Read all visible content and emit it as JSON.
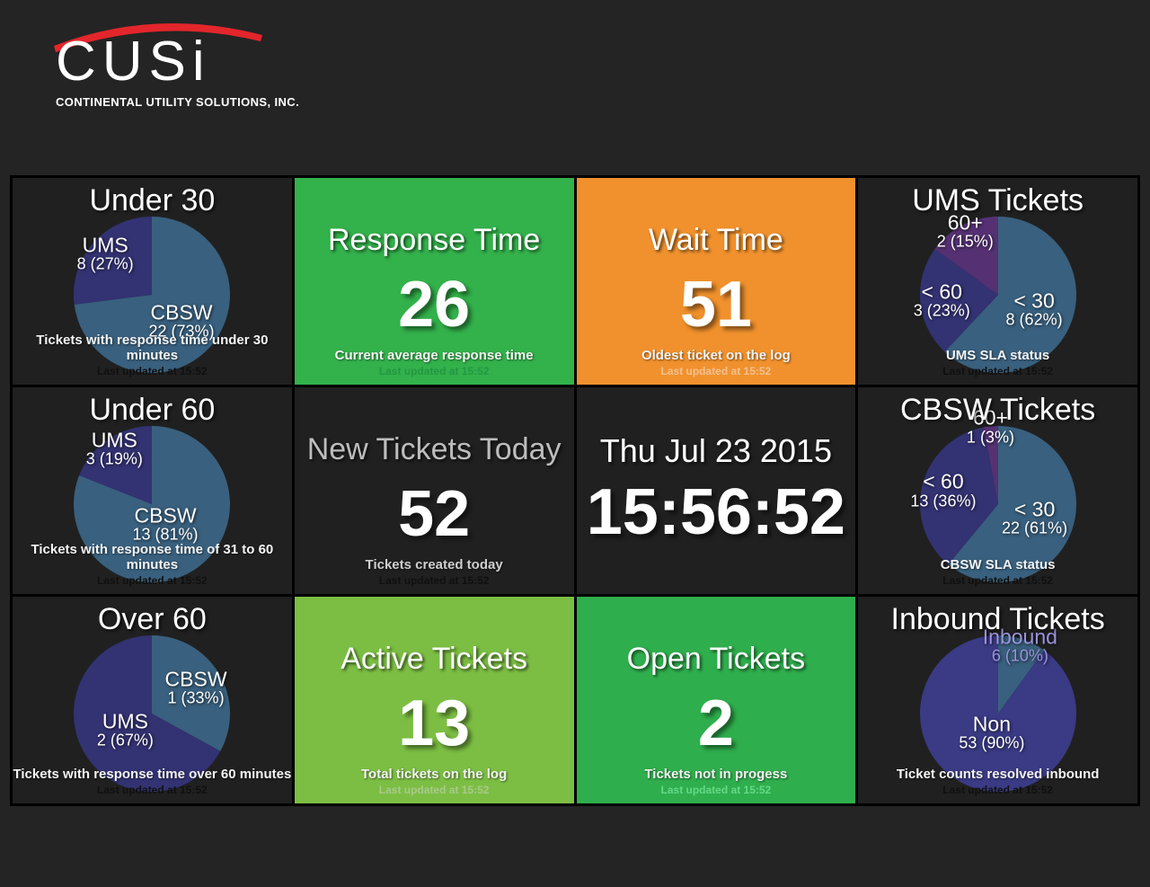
{
  "header": {
    "logo_text": "CUSi",
    "logo_subtitle": "CONTINENTAL UTILITY SOLUTIONS, INC.",
    "swoosh_color": "#e3262b"
  },
  "colors": {
    "steel_blue": "#39607e",
    "navy": "#333273",
    "purple": "#553173",
    "lavender": "#9b93dd",
    "page_background": "#242424",
    "tile_background": "#202020"
  },
  "tiles": [
    {
      "id": "under-30",
      "type": "pie",
      "title": "Under 30",
      "caption": "Tickets with response time under 30 minutes",
      "updated": "Last updated at 15:52",
      "chart": {
        "type": "pie",
        "slices": [
          {
            "label": "CBSW",
            "value": 22,
            "pct": 73,
            "display": "22 (73%)",
            "color": "#39607e",
            "lr": 0.5
          },
          {
            "label": "UMS",
            "value": 8,
            "pct": 27,
            "display": "8 (27%)",
            "color": "#333273",
            "lr": 0.8
          }
        ]
      }
    },
    {
      "id": "response-time",
      "type": "metric",
      "title": "Response Time",
      "value": "26",
      "caption": "Current average response time",
      "updated": "Last updated at 15:52",
      "bg": "#33b14b",
      "updated_color": "#239743"
    },
    {
      "id": "wait-time",
      "type": "metric",
      "title": "Wait Time",
      "value": "51",
      "caption": "Oldest ticket on the log",
      "updated": "Last updated at 15:52",
      "bg": "#f0912d",
      "updated_color": "#f4c austen"
    },
    {
      "id": "ums-tickets",
      "type": "pie",
      "title": "UMS Tickets",
      "caption": "UMS SLA status",
      "updated": "Last updated at 15:52",
      "chart": {
        "type": "pie",
        "slices": [
          {
            "label": "< 30",
            "value": 8,
            "pct": 62,
            "display": "8 (62%)",
            "color": "#39607e",
            "lr": 0.5
          },
          {
            "label": "< 60",
            "value": 3,
            "pct": 23,
            "display": "3 (23%)",
            "color": "#333273",
            "lr": 0.72
          },
          {
            "label": "60+",
            "value": 2,
            "pct": 15,
            "display": "2 (15%)",
            "color": "#553173",
            "lr": 0.92
          }
        ]
      }
    },
    {
      "id": "under-60",
      "type": "pie",
      "title": "Under 60",
      "caption": "Tickets with response time of 31 to 60 minutes",
      "updated": "Last updated at 15:52",
      "chart": {
        "type": "pie",
        "slices": [
          {
            "label": "CBSW",
            "value": 13,
            "pct": 81,
            "display": "13 (81%)",
            "color": "#39607e",
            "lr": 0.3
          },
          {
            "label": "UMS",
            "value": 3,
            "pct": 19,
            "display": "3 (19%)",
            "color": "#333273",
            "lr": 0.86
          }
        ]
      }
    },
    {
      "id": "new-tickets-today",
      "type": "metric",
      "title": "New Tickets Today",
      "value": "52",
      "caption": "Tickets created today",
      "updated": "Last updated at 15:52"
    },
    {
      "id": "clock",
      "type": "clock",
      "date": "Thu Jul 23 2015",
      "time": "15:56:52"
    },
    {
      "id": "cbsw-tickets",
      "type": "pie",
      "title": "CBSW Tickets",
      "caption": "CBSW SLA status",
      "updated": "Last updated at 15:52",
      "chart": {
        "type": "pie",
        "slices": [
          {
            "label": "< 30",
            "value": 22,
            "pct": 61,
            "display": "22 (61%)",
            "color": "#39607e",
            "lr": 0.5
          },
          {
            "label": "< 60",
            "value": 13,
            "pct": 36,
            "display": "13 (36%)",
            "color": "#333273",
            "lr": 0.72
          },
          {
            "label": "60+",
            "value": 1,
            "pct": 3,
            "display": "1 (3%)",
            "color": "#553173",
            "lr": 1.0
          }
        ]
      }
    },
    {
      "id": "over-60",
      "type": "pie",
      "title": "Over 60",
      "caption": "Tickets with response time over 60 minutes",
      "updated": "Last updated at 15:52",
      "chart": {
        "type": "pie",
        "slices": [
          {
            "label": "CBSW",
            "value": 1,
            "pct": 33,
            "display": "1 (33%)",
            "color": "#39607e",
            "lr": 0.65
          },
          {
            "label": "UMS",
            "value": 2,
            "pct": 67,
            "display": "2 (67%)",
            "color": "#333273",
            "lr": 0.4
          }
        ]
      }
    },
    {
      "id": "active-tickets",
      "type": "metric",
      "title": "Active Tickets",
      "value": "13",
      "caption": "Total tickets on the log",
      "updated": "Last updated at 15:52",
      "bg": "#7cbe43",
      "updated_color": "#a9c98c"
    },
    {
      "id": "open-tickets",
      "type": "metric",
      "title": "Open Tickets",
      "value": "2",
      "caption": "Tickets not in progess",
      "updated": "Last updated at 15:52",
      "bg": "#2fae4d",
      "updated_color": "#64d988"
    },
    {
      "id": "inbound-tickets",
      "type": "pie",
      "title": "Inbound Tickets",
      "caption": "Ticket counts resolved inbound",
      "updated": "Last updated at 15:52",
      "chart": {
        "type": "pie",
        "slices": [
          {
            "label": "Inbound",
            "value": 6,
            "pct": 10,
            "display": "6 (10%)",
            "color": "#39607e",
            "lr": 0.92,
            "label_color": "#9b93dd"
          },
          {
            "label": "Non",
            "value": 53,
            "pct": 90,
            "display": "53 (90%)",
            "color": "#3a3a85",
            "lr": 0.25
          }
        ]
      }
    }
  ]
}
